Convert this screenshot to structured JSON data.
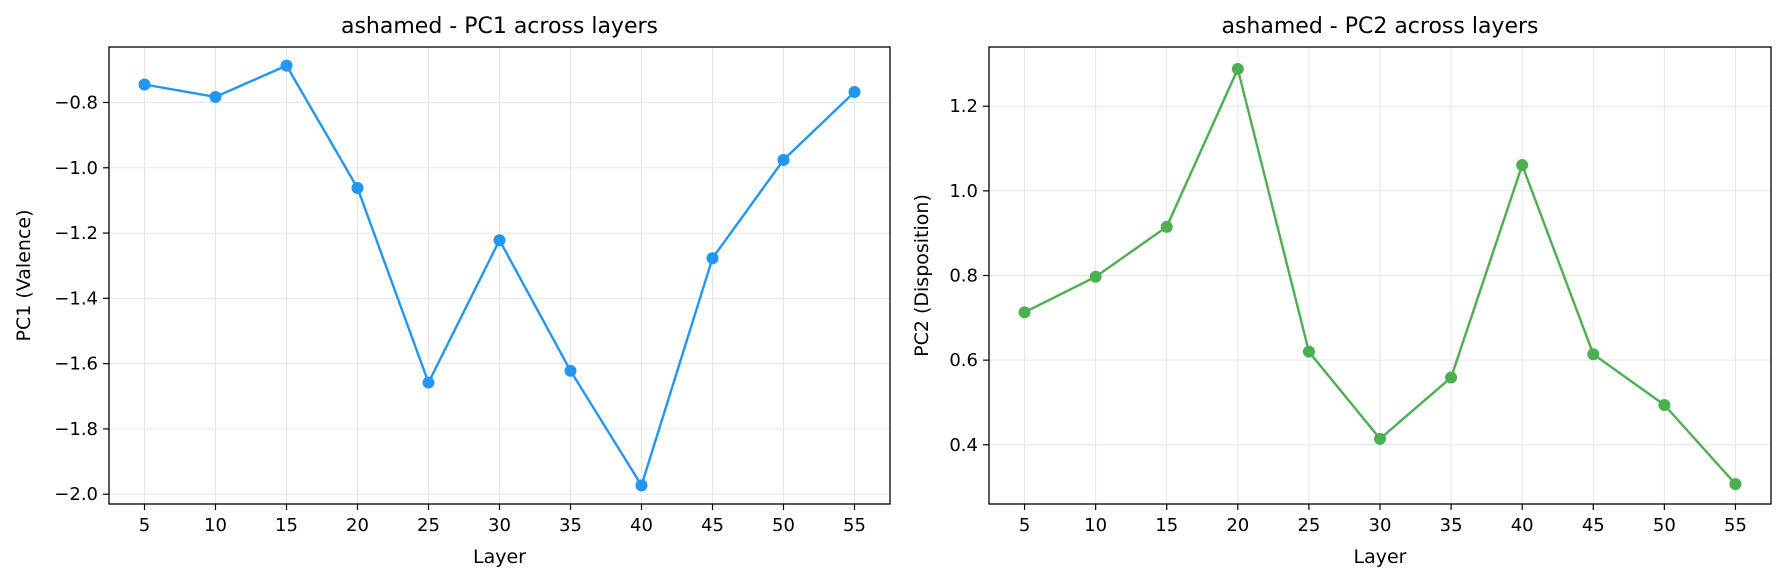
{
  "chart_data": [
    {
      "type": "line",
      "title": "ashamed - PC1 across layers",
      "xlabel": "Layer",
      "ylabel": "PC1 (Valence)",
      "x": [
        5,
        10,
        15,
        20,
        25,
        30,
        35,
        40,
        45,
        50,
        55
      ],
      "xticks": [
        5,
        10,
        15,
        20,
        25,
        30,
        35,
        40,
        45,
        50,
        55
      ],
      "xlim": [
        2.5,
        57.5
      ],
      "yticks": [
        -0.8,
        -1.0,
        -1.2,
        -1.4,
        -1.6,
        -1.8,
        -2.0
      ],
      "ytick_labels": [
        "−0.8",
        "−1.0",
        "−1.2",
        "−1.4",
        "−1.6",
        "−1.8",
        "−2.0"
      ],
      "ylim": [
        -2.03,
        -0.63
      ],
      "grid": true,
      "series": [
        {
          "color": "#2196f3",
          "values": [
            -0.745,
            -0.783,
            -0.687,
            -1.062,
            -1.658,
            -1.222,
            -1.622,
            -1.973,
            -1.277,
            -0.976,
            -0.768
          ]
        }
      ]
    },
    {
      "type": "line",
      "title": "ashamed - PC2 across layers",
      "xlabel": "Layer",
      "ylabel": "PC2 (Disposition)",
      "x": [
        5,
        10,
        15,
        20,
        25,
        30,
        35,
        40,
        45,
        50,
        55
      ],
      "xticks": [
        5,
        10,
        15,
        20,
        25,
        30,
        35,
        40,
        45,
        50,
        55
      ],
      "xlim": [
        2.5,
        57.5
      ],
      "yticks": [
        1.2,
        1.0,
        0.8,
        0.6,
        0.4
      ],
      "ytick_labels": [
        "1.2",
        "1.0",
        "0.8",
        "0.6",
        "0.4"
      ],
      "ylim": [
        0.26,
        1.34
      ],
      "grid": true,
      "series": [
        {
          "color": "#4caf50",
          "values": [
            0.713,
            0.797,
            0.915,
            1.288,
            0.62,
            0.414,
            0.559,
            1.061,
            0.614,
            0.494,
            0.307
          ]
        }
      ]
    }
  ]
}
